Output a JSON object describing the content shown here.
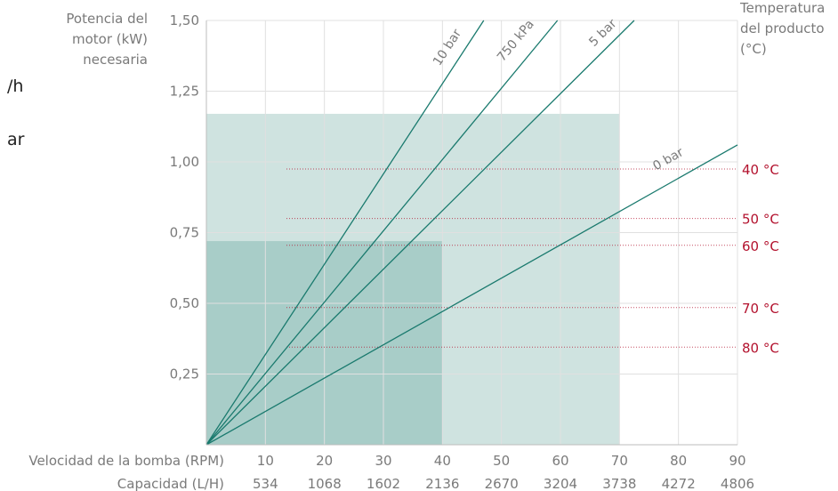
{
  "left_fragments": [
    "/h",
    "ar"
  ],
  "chart_data": {
    "type": "line",
    "title": "",
    "ylabel": "Potencia del motor (kW) necesaria",
    "y2label": "Temperatura del producto (°C)",
    "ylim": [
      0,
      1.5
    ],
    "xlim": [
      0,
      90
    ],
    "y_ticks": [
      "1,50",
      "1,25",
      "1,00",
      "0,75",
      "0,50",
      "0,25"
    ],
    "x_axis_label_rpm": "Velocidad de la bomba (RPM)",
    "x_axis_label_cap": "Capacidad (L/H)",
    "x_ticks_rpm": [
      "10",
      "20",
      "30",
      "40",
      "50",
      "60",
      "70",
      "80",
      "90"
    ],
    "x_ticks_cap": [
      "534",
      "1068",
      "1602",
      "2136",
      "2670",
      "3204",
      "3738",
      "4272",
      "4806"
    ],
    "series": [
      {
        "name": "10 bar",
        "x": [
          0,
          47
        ],
        "y": [
          0,
          1.5
        ]
      },
      {
        "name": "750 kPa",
        "x": [
          0,
          59.5
        ],
        "y": [
          0,
          1.5
        ]
      },
      {
        "name": "5 bar",
        "x": [
          0,
          72.5
        ],
        "y": [
          0,
          1.5
        ]
      },
      {
        "name": "0 bar",
        "x": [
          0,
          90
        ],
        "y": [
          0,
          1.06
        ]
      }
    ],
    "regions": [
      {
        "x": [
          0,
          70
        ],
        "y": [
          0,
          1.17
        ],
        "color": "#cfe3e0"
      },
      {
        "x": [
          0,
          40
        ],
        "y": [
          0,
          0.72
        ],
        "color": "#a8cdc8"
      }
    ],
    "temperature_markers": [
      {
        "label": "40 °C",
        "y": 0.975
      },
      {
        "label": "50 °C",
        "y": 0.8
      },
      {
        "label": "60 °C",
        "y": 0.705
      },
      {
        "label": "70 °C",
        "y": 0.485
      },
      {
        "label": "80 °C",
        "y": 0.345
      }
    ],
    "grid": true,
    "colors": {
      "line": "#1a7a6e",
      "temp": "#b3122e",
      "axis_text": "#7a7a7a",
      "grid": "#e0e0e0"
    }
  }
}
